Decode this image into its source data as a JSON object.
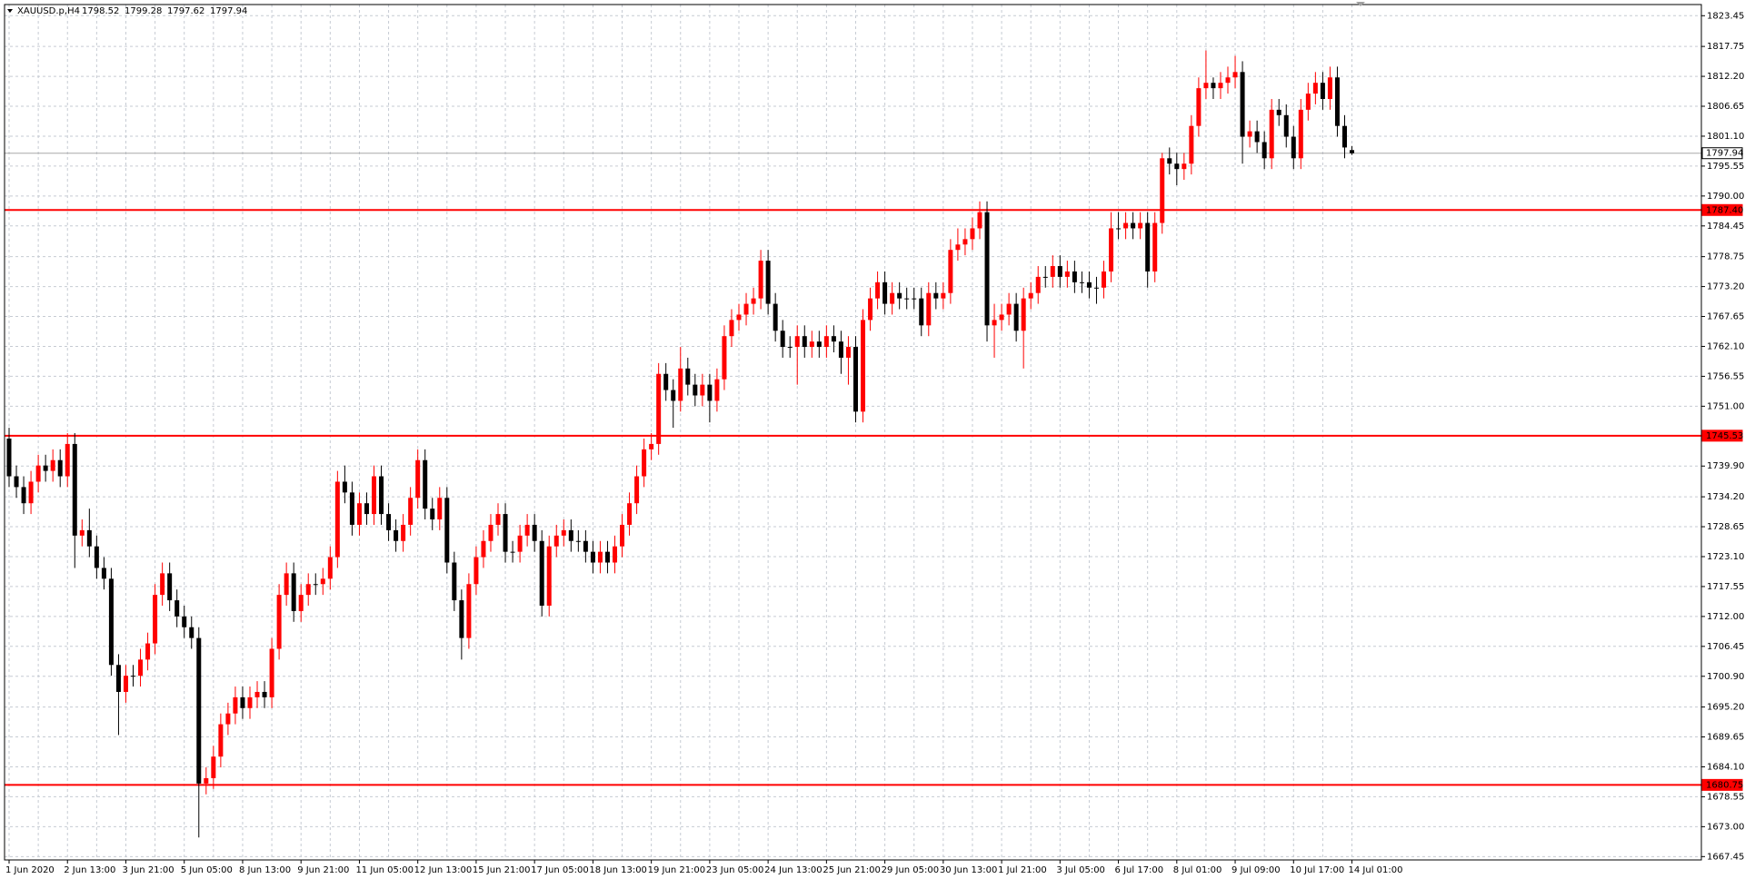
{
  "chart_data": {
    "type": "candlestick",
    "symbol": "XAUUSD.p,H4",
    "up_color": "#ff0000",
    "down_color": "#000000",
    "grid": true,
    "ylim": [
      1666.83,
      1825.52
    ],
    "yticks": [
      1823.45,
      1817.75,
      {
        "value": 1812.2,
        "label": "1812.20"
      },
      1806.65,
      {
        "value": 1801.1,
        "label": "1801.10"
      },
      1795.55,
      {
        "value": 1790,
        "label": "1790.00"
      },
      1784.45,
      1778.75,
      {
        "value": 1773.2,
        "label": "1773.20"
      },
      1767.65,
      {
        "value": 1762.1,
        "label": "1762.10"
      },
      1756.55,
      {
        "value": 1751,
        "label": "1751.00"
      },
      {
        "value": 1739.9,
        "label": "1739.90"
      },
      {
        "value": 1734.2,
        "label": "1734.20"
      },
      1728.65,
      {
        "value": 1723.1,
        "label": "1723.10"
      },
      1717.55,
      {
        "value": 1712,
        "label": "1712.00"
      },
      1706.45,
      {
        "value": 1700.9,
        "label": "1700.90"
      },
      {
        "value": 1695.2,
        "label": "1695.20"
      },
      1689.65,
      {
        "value": 1684.1,
        "label": "1684.10"
      },
      1678.55,
      {
        "value": 1673,
        "label": "1673.00"
      },
      1667.45
    ],
    "levels": [
      {
        "value": 1787.4,
        "label": "1787.40",
        "color": "#ff0000"
      },
      {
        "value": 1745.53,
        "color": "#ff0000"
      },
      {
        "value": 1680.75,
        "color": "#ff0000"
      },
      {
        "value": 1797.94,
        "color": "#a8a8a8"
      }
    ],
    "categories": [
      "1 Jun 2020",
      null,
      null,
      null,
      null,
      null,
      null,
      null,
      "2 Jun 13:00",
      null,
      null,
      null,
      null,
      null,
      null,
      null,
      "3 Jun 21:00",
      null,
      null,
      null,
      null,
      null,
      null,
      null,
      "5 Jun 05:00",
      null,
      null,
      null,
      null,
      null,
      null,
      null,
      "8 Jun 13:00",
      null,
      null,
      null,
      null,
      null,
      null,
      null,
      "9 Jun 21:00",
      null,
      null,
      null,
      null,
      null,
      null,
      null,
      "11 Jun 05:00",
      null,
      null,
      null,
      null,
      null,
      null,
      null,
      "12 Jun 13:00",
      null,
      null,
      null,
      null,
      null,
      null,
      null,
      "15 Jun 21:00",
      null,
      null,
      null,
      null,
      null,
      null,
      null,
      "17 Jun 05:00",
      null,
      null,
      null,
      null,
      null,
      null,
      null,
      "18 Jun 13:00",
      null,
      null,
      null,
      null,
      null,
      null,
      null,
      "19 Jun 21:00",
      null,
      null,
      null,
      null,
      null,
      null,
      null,
      "23 Jun 05:00",
      null,
      null,
      null,
      null,
      null,
      null,
      null,
      "24 Jun 13:00",
      null,
      null,
      null,
      null,
      null,
      null,
      null,
      "25 Jun 21:00",
      null,
      null,
      null,
      null,
      null,
      null,
      null,
      "29 Jun 05:00",
      null,
      null,
      null,
      null,
      null,
      null,
      null,
      "30 Jun 13:00",
      null,
      null,
      null,
      null,
      null,
      null,
      null,
      "1 Jul 21:00",
      null,
      null,
      null,
      null,
      null,
      null,
      null,
      "3 Jul 05:00",
      null,
      null,
      null,
      null,
      null,
      null,
      null,
      "6 Jul 17:00",
      null,
      null,
      null,
      null,
      null,
      null,
      null,
      "8 Jul 01:00",
      null,
      null,
      null,
      null,
      null,
      null,
      null,
      "9 Jul 09:00",
      null,
      null,
      null,
      null,
      null,
      null,
      null,
      "10 Jul 17:00",
      null,
      null,
      null,
      null,
      null,
      null,
      null,
      "14 Jul 01:00"
    ],
    "open": [
      1745,
      1738,
      1736,
      1733,
      1737,
      1740,
      1739,
      1741,
      1738,
      1744,
      1727,
      1728,
      1725,
      1721,
      1719,
      1703,
      1698,
      1701,
      1701,
      1704,
      1707,
      1716,
      1720,
      1715,
      1712,
      1710,
      1708,
      1681,
      1682,
      1686,
      1692,
      1694,
      1697,
      1695,
      1697,
      1698,
      1697,
      1706,
      1716,
      1720,
      1713,
      1716,
      1718,
      1718,
      1719,
      1723,
      1737,
      1735,
      1729,
      1733,
      1731,
      1738,
      1731,
      1728,
      1726,
      1729,
      1734,
      1741,
      1732,
      1730,
      1734,
      1722,
      1715,
      1708,
      1718,
      1723,
      1726,
      1729,
      1731,
      1724,
      1724,
      1727,
      1729,
      1726,
      1714,
      1725,
      1727,
      1728,
      1726,
      1726,
      1724,
      1722,
      1724,
      1722,
      1725,
      1729,
      1733,
      1738,
      1743,
      1744,
      1757,
      1754,
      1752,
      1758,
      1755,
      1753,
      1755,
      1752,
      1756,
      1764,
      1767,
      1768,
      1770,
      1771,
      1778,
      1770,
      1765,
      1762,
      1762,
      1764,
      1762,
      1763,
      1762,
      1764,
      1763,
      1760,
      1762,
      1750,
      1767,
      1771,
      1774,
      1770,
      1772,
      1771,
      1771,
      1771,
      1766,
      1772,
      1771,
      1772,
      1780,
      1781,
      1782,
      1784,
      1787,
      1766,
      1767,
      1768,
      1770,
      1765,
      1771,
      1772,
      1775,
      1775,
      1777,
      1775,
      1776,
      1774,
      1774,
      1773,
      1773,
      1776,
      1784,
      1784,
      1785,
      1784,
      1785,
      1776,
      1785,
      1797,
      1796,
      1795,
      1796,
      1803,
      1810,
      1811,
      1810,
      1811,
      1812,
      1813,
      1801,
      1802,
      1800,
      1797,
      1806,
      1805,
      1801,
      1797,
      1806,
      1809,
      1811,
      1808,
      1812,
      1803,
      1798.52
    ],
    "high": [
      1747,
      1740,
      1738,
      1739,
      1742,
      1742,
      1743,
      1743,
      1746,
      1746,
      1730,
      1732,
      1727,
      1723,
      1721,
      1705,
      1703,
      1703,
      1706,
      1709,
      1718,
      1722,
      1722,
      1717,
      1714,
      1712,
      1710,
      1684,
      1688,
      1694,
      1696,
      1699,
      1699,
      1699,
      1700,
      1700,
      1708,
      1718,
      1722,
      1722,
      1718,
      1720,
      1720,
      1721,
      1725,
      1739,
      1740,
      1737,
      1735,
      1735,
      1740,
      1740,
      1733,
      1730,
      1731,
      1736,
      1743,
      1743,
      1734,
      1736,
      1736,
      1724,
      1717,
      1720,
      1725,
      1728,
      1731,
      1733,
      1733,
      1726,
      1729,
      1731,
      1731,
      1728,
      1727,
      1729,
      1730,
      1730,
      1728,
      1728,
      1726,
      1726,
      1726,
      1727,
      1731,
      1735,
      1740,
      1745,
      1746,
      1759,
      1759,
      1756,
      1762,
      1760,
      1757,
      1757,
      1757,
      1758,
      1766,
      1769,
      1770,
      1772,
      1773,
      1780,
      1780,
      1772,
      1767,
      1764,
      1766,
      1766,
      1765,
      1765,
      1766,
      1766,
      1765,
      1764,
      1764,
      1769,
      1773,
      1776,
      1776,
      1774,
      1774,
      1773,
      1773,
      1773,
      1774,
      1774,
      1774,
      1782,
      1784,
      1784,
      1786,
      1789,
      1789,
      1770,
      1770,
      1772,
      1772,
      1773,
      1774,
      1777,
      1777,
      1779,
      1779,
      1778,
      1778,
      1776,
      1776,
      1775,
      1778,
      1787,
      1787,
      1787,
      1787,
      1787,
      1787,
      1787,
      1798,
      1799,
      1798,
      1798,
      1805,
      1812,
      1817,
      1812,
      1813,
      1814,
      1816,
      1815,
      1804,
      1804,
      1802,
      1808,
      1808,
      1807,
      1803,
      1808,
      1811,
      1813,
      1813,
      1814,
      1814,
      1805,
      1799.28
    ],
    "low": [
      1736,
      1734,
      1731,
      1731,
      1735,
      1737,
      1737,
      1736,
      1736,
      1721,
      1725,
      1723,
      1719,
      1717,
      1701,
      1690,
      1696,
      1699,
      1699,
      1702,
      1705,
      1714,
      1713,
      1710,
      1708,
      1706,
      1671,
      1679,
      1680,
      1684,
      1690,
      1692,
      1693,
      1693,
      1695,
      1695,
      1695,
      1704,
      1714,
      1711,
      1711,
      1714,
      1716,
      1716,
      1717,
      1721,
      1733,
      1727,
      1727,
      1729,
      1729,
      1729,
      1726,
      1724,
      1724,
      1727,
      1732,
      1730,
      1728,
      1728,
      1720,
      1713,
      1704,
      1706,
      1716,
      1721,
      1724,
      1727,
      1722,
      1722,
      1722,
      1725,
      1724,
      1712,
      1712,
      1723,
      1725,
      1724,
      1724,
      1722,
      1720,
      1720,
      1720,
      1720,
      1723,
      1727,
      1731,
      1736,
      1741,
      1742,
      1752,
      1747,
      1750,
      1753,
      1751,
      1751,
      1748,
      1750,
      1754,
      1762,
      1765,
      1766,
      1768,
      1769,
      1768,
      1763,
      1760,
      1760,
      1755,
      1760,
      1760,
      1760,
      1760,
      1761,
      1757,
      1755,
      1748,
      1748,
      1765,
      1769,
      1768,
      1768,
      1769,
      1769,
      1769,
      1764,
      1764,
      1769,
      1769,
      1770,
      1778,
      1779,
      1780,
      1782,
      1763,
      1760,
      1765,
      1766,
      1763,
      1758,
      1769,
      1770,
      1773,
      1773,
      1773,
      1773,
      1772,
      1772,
      1771,
      1770,
      1771,
      1774,
      1782,
      1782,
      1782,
      1782,
      1773,
      1774,
      1783,
      1794,
      1792,
      1793,
      1794,
      1801,
      1808,
      1808,
      1808,
      1809,
      1810,
      1796,
      1799,
      1798,
      1795,
      1795,
      1803,
      1799,
      1795,
      1795,
      1804,
      1807,
      1806,
      1806,
      1801,
      1797,
      1797.62
    ],
    "close": [
      1738,
      1736,
      1733,
      1737,
      1740,
      1739,
      1741,
      1738,
      1744,
      1727,
      1728,
      1725,
      1721,
      1719,
      1703,
      1698,
      1701,
      1701,
      1704,
      1707,
      1716,
      1720,
      1715,
      1712,
      1710,
      1708,
      1681,
      1682,
      1686,
      1692,
      1694,
      1697,
      1695,
      1697,
      1698,
      1697,
      1706,
      1716,
      1720,
      1713,
      1716,
      1718,
      1718,
      1719,
      1723,
      1737,
      1735,
      1729,
      1733,
      1731,
      1738,
      1731,
      1728,
      1726,
      1729,
      1734,
      1741,
      1732,
      1730,
      1734,
      1722,
      1715,
      1708,
      1718,
      1723,
      1726,
      1729,
      1731,
      1724,
      1724,
      1727,
      1729,
      1726,
      1714,
      1725,
      1727,
      1728,
      1726,
      1726,
      1724,
      1722,
      1724,
      1722,
      1725,
      1729,
      1733,
      1738,
      1743,
      1744,
      1757,
      1754,
      1752,
      1758,
      1755,
      1753,
      1755,
      1752,
      1756,
      1764,
      1767,
      1768,
      1770,
      1771,
      1778,
      1770,
      1765,
      1762,
      1762,
      1764,
      1762,
      1763,
      1762,
      1764,
      1763,
      1760,
      1762,
      1750,
      1767,
      1771,
      1774,
      1770,
      1772,
      1771,
      1771,
      1771,
      1766,
      1772,
      1771,
      1772,
      1780,
      1781,
      1782,
      1784,
      1787,
      1766,
      1767,
      1768,
      1770,
      1765,
      1771,
      1772,
      1775,
      1775,
      1777,
      1775,
      1776,
      1774,
      1774,
      1773,
      1773,
      1776,
      1784,
      1784,
      1785,
      1784,
      1785,
      1776,
      1785,
      1797,
      1796,
      1795,
      1796,
      1803,
      1810,
      1811,
      1810,
      1811,
      1812,
      1813,
      1801,
      1802,
      1800,
      1797,
      1806,
      1805,
      1801,
      1797,
      1806,
      1809,
      1811,
      1808,
      1812,
      1803,
      1799,
      1797.94
    ]
  }
}
